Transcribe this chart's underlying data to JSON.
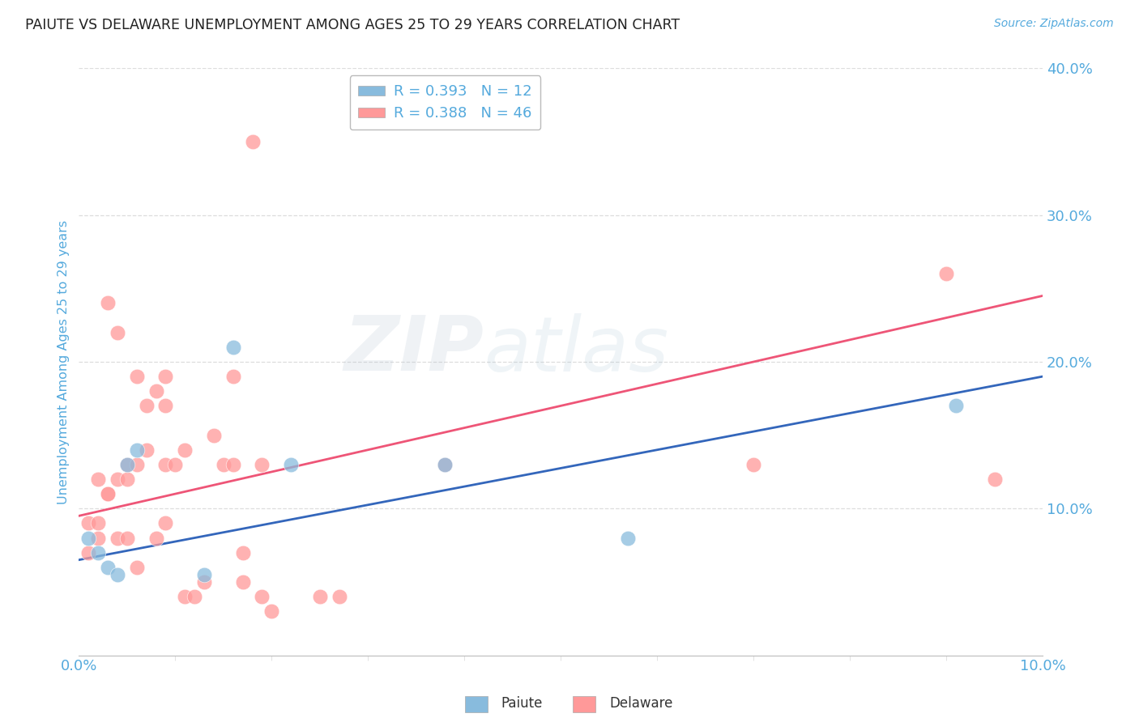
{
  "title": "PAIUTE VS DELAWARE UNEMPLOYMENT AMONG AGES 25 TO 29 YEARS CORRELATION CHART",
  "source": "Source: ZipAtlas.com",
  "ylabel": "Unemployment Among Ages 25 to 29 years",
  "xlim": [
    0.0,
    0.1
  ],
  "ylim": [
    -0.02,
    0.42
  ],
  "plot_ylim": [
    0.0,
    0.4
  ],
  "paiute_R": 0.393,
  "paiute_N": 12,
  "delaware_R": 0.388,
  "delaware_N": 46,
  "paiute_color": "#88BBDD",
  "delaware_color": "#FF9999",
  "paiute_line_color": "#3366BB",
  "delaware_line_color": "#EE5577",
  "background_color": "#FFFFFF",
  "title_color": "#222222",
  "axis_color": "#55AADD",
  "grid_color": "#DDDDDD",
  "watermark_color": "#C5D8EC",
  "paiute_x": [
    0.001,
    0.002,
    0.003,
    0.004,
    0.005,
    0.006,
    0.013,
    0.016,
    0.022,
    0.038,
    0.057,
    0.091
  ],
  "paiute_y": [
    0.08,
    0.07,
    0.06,
    0.055,
    0.13,
    0.14,
    0.055,
    0.21,
    0.13,
    0.13,
    0.08,
    0.17
  ],
  "delaware_x": [
    0.001,
    0.001,
    0.002,
    0.002,
    0.002,
    0.003,
    0.003,
    0.003,
    0.004,
    0.004,
    0.004,
    0.005,
    0.005,
    0.005,
    0.006,
    0.006,
    0.006,
    0.007,
    0.007,
    0.008,
    0.008,
    0.009,
    0.009,
    0.009,
    0.009,
    0.01,
    0.011,
    0.011,
    0.012,
    0.013,
    0.014,
    0.015,
    0.016,
    0.016,
    0.017,
    0.017,
    0.018,
    0.019,
    0.019,
    0.02,
    0.025,
    0.027,
    0.038,
    0.07,
    0.09,
    0.095
  ],
  "delaware_y": [
    0.07,
    0.09,
    0.08,
    0.09,
    0.12,
    0.11,
    0.11,
    0.24,
    0.08,
    0.12,
    0.22,
    0.08,
    0.12,
    0.13,
    0.06,
    0.13,
    0.19,
    0.14,
    0.17,
    0.08,
    0.18,
    0.09,
    0.13,
    0.17,
    0.19,
    0.13,
    0.04,
    0.14,
    0.04,
    0.05,
    0.15,
    0.13,
    0.13,
    0.19,
    0.05,
    0.07,
    0.35,
    0.04,
    0.13,
    0.03,
    0.04,
    0.04,
    0.13,
    0.13,
    0.26,
    0.12
  ],
  "paiute_line_x": [
    0.0,
    0.1
  ],
  "paiute_line_y": [
    0.065,
    0.19
  ],
  "delaware_line_x": [
    0.0,
    0.1
  ],
  "delaware_line_y": [
    0.095,
    0.245
  ]
}
